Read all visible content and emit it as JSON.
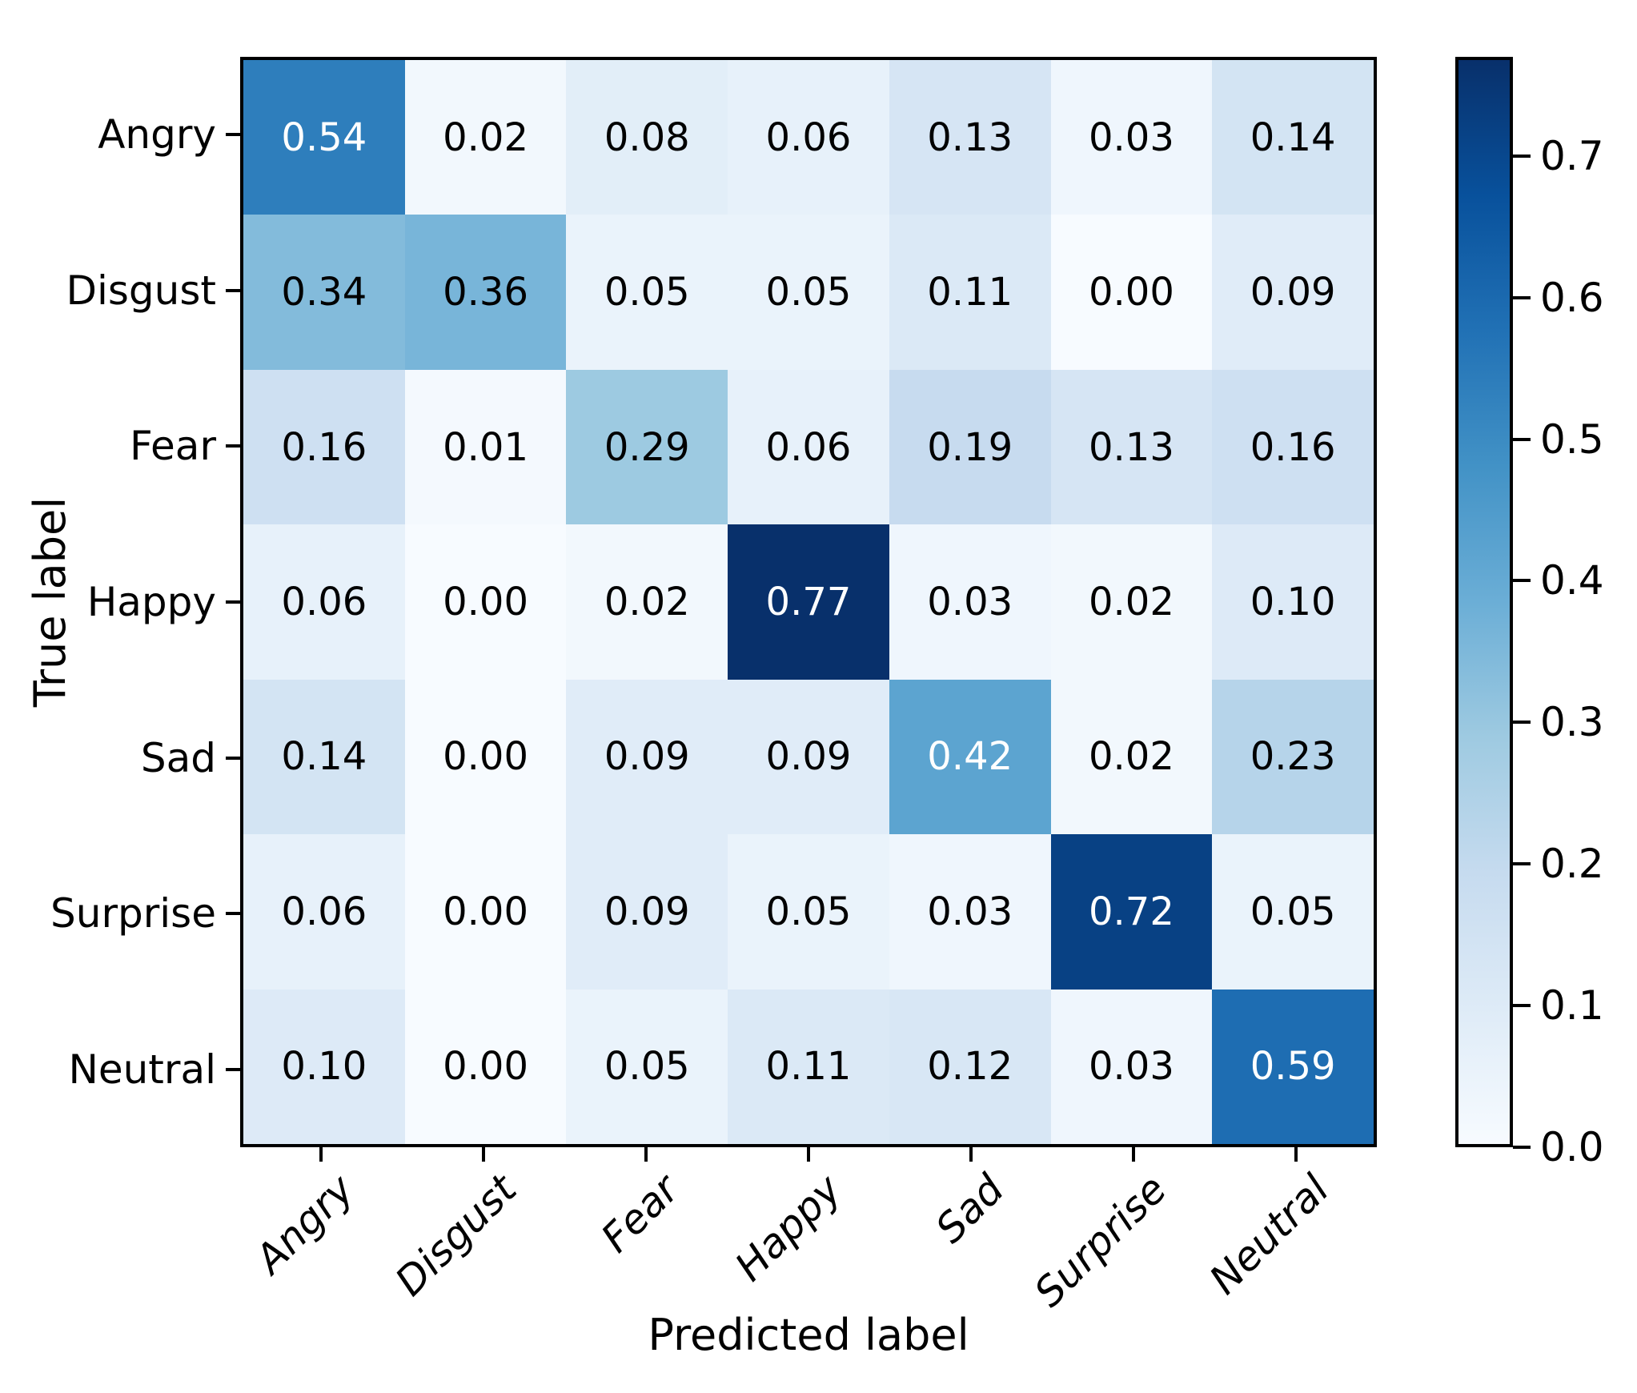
{
  "chart_data": {
    "type": "heatmap",
    "subtype": "confusion-matrix",
    "xlabel": "Predicted label",
    "ylabel": "True label",
    "categories": [
      "Angry",
      "Disgust",
      "Fear",
      "Happy",
      "Sad",
      "Surprise",
      "Neutral"
    ],
    "matrix": [
      [
        0.54,
        0.02,
        0.08,
        0.06,
        0.13,
        0.03,
        0.14
      ],
      [
        0.34,
        0.36,
        0.05,
        0.05,
        0.11,
        0.0,
        0.09
      ],
      [
        0.16,
        0.01,
        0.29,
        0.06,
        0.19,
        0.13,
        0.16
      ],
      [
        0.06,
        0.0,
        0.02,
        0.77,
        0.03,
        0.02,
        0.1
      ],
      [
        0.14,
        0.0,
        0.09,
        0.09,
        0.42,
        0.02,
        0.23
      ],
      [
        0.06,
        0.0,
        0.09,
        0.05,
        0.03,
        0.72,
        0.05
      ],
      [
        0.1,
        0.0,
        0.05,
        0.11,
        0.12,
        0.03,
        0.59
      ]
    ],
    "value_format_decimals": 2,
    "vmin": 0.0,
    "vmax": 0.77,
    "text_threshold": 0.385,
    "colorbar_ticks": [
      "0.0",
      "0.1",
      "0.2",
      "0.3",
      "0.4",
      "0.5",
      "0.6",
      "0.7"
    ],
    "colorbar_position": "right",
    "grid": false,
    "colormap": {
      "name": "Blues",
      "anchors": [
        "#f7fbff",
        "#deebf7",
        "#c6dbef",
        "#9ecae1",
        "#6baed6",
        "#4292c6",
        "#2171b5",
        "#08519c",
        "#08306b"
      ]
    },
    "cell_text_colors": {
      "light": "#ffffff",
      "dark": "#000000"
    },
    "axis_color": "#000000",
    "background_color": "#ffffff"
  }
}
